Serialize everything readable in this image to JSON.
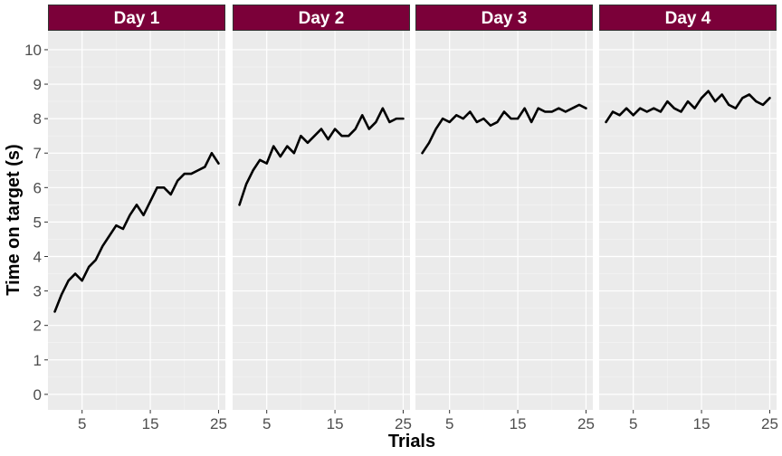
{
  "chart_data": {
    "type": "line",
    "facet": "columns",
    "xlabel": "Trials",
    "ylabel": "Time on target (s)",
    "xlim": [
      0,
      26
    ],
    "ylim": [
      -0.45,
      10.55
    ],
    "x_ticks": [
      5,
      15,
      25
    ],
    "y_ticks": [
      0,
      1,
      2,
      3,
      4,
      5,
      6,
      7,
      8,
      9,
      10
    ],
    "grid": true,
    "line_color": "#000000",
    "panel_background": "#ebebeb",
    "strip_fill": "#7b0039",
    "panels": [
      {
        "label": "Day 1",
        "x": [
          1,
          2,
          3,
          4,
          5,
          6,
          7,
          8,
          9,
          10,
          11,
          12,
          13,
          14,
          15,
          16,
          17,
          18,
          19,
          20,
          21,
          22,
          23,
          24,
          25
        ],
        "values": [
          2.4,
          2.9,
          3.3,
          3.5,
          3.3,
          3.7,
          3.9,
          4.3,
          4.6,
          4.9,
          4.8,
          5.2,
          5.5,
          5.2,
          5.6,
          6.0,
          6.0,
          5.8,
          6.2,
          6.4,
          6.4,
          6.5,
          6.6,
          7.0,
          6.7
        ]
      },
      {
        "label": "Day 2",
        "x": [
          1,
          2,
          3,
          4,
          5,
          6,
          7,
          8,
          9,
          10,
          11,
          12,
          13,
          14,
          15,
          16,
          17,
          18,
          19,
          20,
          21,
          22,
          23,
          24,
          25
        ],
        "values": [
          5.5,
          6.1,
          6.5,
          6.8,
          6.7,
          7.2,
          6.9,
          7.2,
          7.0,
          7.5,
          7.3,
          7.5,
          7.7,
          7.4,
          7.7,
          7.5,
          7.5,
          7.7,
          8.1,
          7.7,
          7.9,
          8.3,
          7.9,
          8.0,
          8.0
        ]
      },
      {
        "label": "Day 3",
        "x": [
          1,
          2,
          3,
          4,
          5,
          6,
          7,
          8,
          9,
          10,
          11,
          12,
          13,
          14,
          15,
          16,
          17,
          18,
          19,
          20,
          21,
          22,
          23,
          24,
          25
        ],
        "values": [
          7.0,
          7.3,
          7.7,
          8.0,
          7.9,
          8.1,
          8.0,
          8.2,
          7.9,
          8.0,
          7.8,
          7.9,
          8.2,
          8.0,
          8.0,
          8.3,
          7.9,
          8.3,
          8.2,
          8.2,
          8.3,
          8.2,
          8.3,
          8.4,
          8.3
        ]
      },
      {
        "label": "Day 4",
        "x": [
          1,
          2,
          3,
          4,
          5,
          6,
          7,
          8,
          9,
          10,
          11,
          12,
          13,
          14,
          15,
          16,
          17,
          18,
          19,
          20,
          21,
          22,
          23,
          24,
          25
        ],
        "values": [
          7.9,
          8.2,
          8.1,
          8.3,
          8.1,
          8.3,
          8.2,
          8.3,
          8.2,
          8.5,
          8.3,
          8.2,
          8.5,
          8.3,
          8.6,
          8.8,
          8.5,
          8.7,
          8.4,
          8.3,
          8.6,
          8.7,
          8.5,
          8.4,
          8.6
        ]
      }
    ]
  }
}
